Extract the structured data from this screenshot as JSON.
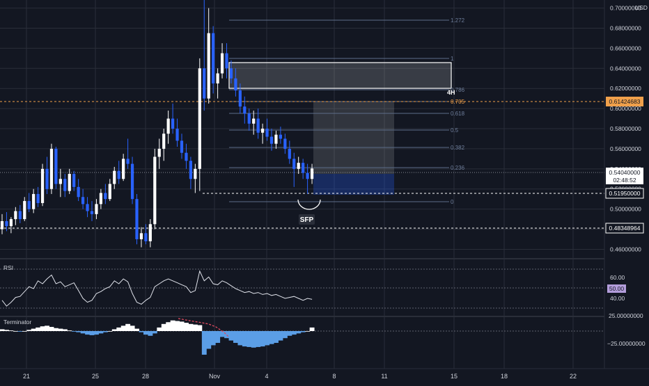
{
  "colors": {
    "background": "#131722",
    "up": "#ffffff",
    "down": "#2962ff",
    "grid": "#2a2e39",
    "axis_text": "#d1d4dc",
    "fib": "#5d6d8a",
    "fib_text": "#6f7f9c",
    "orange": "#f0a04b",
    "rsi": "#e0e3eb",
    "term_blue": "#5b9ee6",
    "term_white": "#ffffff",
    "term_red": "#e04a5f",
    "rsi_badge": "#b39ddb"
  },
  "price_axis": {
    "currency": "USD",
    "ticks": [
      "0.70000000",
      "0.68000000",
      "0.66000000",
      "0.64000000",
      "0.62000000",
      "0.60000000",
      "0.58000000",
      "0.56000000",
      "0.54000000",
      "0.52000000",
      "0.50000000",
      "0.48000000",
      "0.46000000"
    ]
  },
  "price_labels": {
    "top_level": "0.61424683",
    "current": "0.54040000",
    "countdown": "02:48:52",
    "low_level": "0.51950000",
    "bottom_level": "0.48348964"
  },
  "fib_labels": [
    "1.272",
    "1",
    "0.786",
    "0.705",
    "0.618",
    "0.5",
    "0.382",
    "0.236",
    "0"
  ],
  "annotations": {
    "timeframe": "4H",
    "sfp": "SFP"
  },
  "rsi": {
    "title": "RSI",
    "ticks": [
      "60.00",
      "40.00"
    ],
    "badge": "50.00"
  },
  "terminator": {
    "title": "Terminator",
    "ticks": [
      "25.00000000",
      "−25.00000000"
    ]
  },
  "time_axis": {
    "ticks": [
      "21",
      "25",
      "28",
      "Nov",
      "4",
      "8",
      "11",
      "15",
      "18",
      "22"
    ]
  },
  "chart_data": [
    {
      "type": "candlestick",
      "title": "",
      "currency": "USD",
      "ylim": [
        0.452,
        0.708
      ],
      "x_ticks": [
        "21",
        "25",
        "28",
        "Nov",
        "4",
        "8",
        "11",
        "15",
        "18",
        "22"
      ],
      "ohlc": [
        [
          0.48,
          0.495,
          0.475,
          0.488
        ],
        [
          0.488,
          0.497,
          0.478,
          0.483
        ],
        [
          0.483,
          0.492,
          0.476,
          0.49
        ],
        [
          0.49,
          0.502,
          0.484,
          0.498
        ],
        [
          0.498,
          0.504,
          0.486,
          0.49
        ],
        [
          0.49,
          0.512,
          0.488,
          0.508
        ],
        [
          0.508,
          0.516,
          0.497,
          0.5
        ],
        [
          0.5,
          0.52,
          0.496,
          0.515
        ],
        [
          0.515,
          0.522,
          0.502,
          0.506
        ],
        [
          0.506,
          0.545,
          0.503,
          0.54
        ],
        [
          0.54,
          0.552,
          0.515,
          0.52
        ],
        [
          0.52,
          0.565,
          0.515,
          0.56
        ],
        [
          0.56,
          0.562,
          0.52,
          0.525
        ],
        [
          0.525,
          0.54,
          0.512,
          0.53
        ],
        [
          0.53,
          0.535,
          0.512,
          0.518
        ],
        [
          0.518,
          0.54,
          0.515,
          0.535
        ],
        [
          0.535,
          0.538,
          0.518,
          0.522
        ],
        [
          0.522,
          0.53,
          0.508,
          0.512
        ],
        [
          0.512,
          0.52,
          0.5,
          0.505
        ],
        [
          0.505,
          0.512,
          0.492,
          0.498
        ],
        [
          0.498,
          0.508,
          0.488,
          0.495
        ],
        [
          0.495,
          0.51,
          0.49,
          0.505
        ],
        [
          0.505,
          0.52,
          0.5,
          0.516
        ],
        [
          0.516,
          0.525,
          0.505,
          0.51
        ],
        [
          0.51,
          0.53,
          0.508,
          0.525
        ],
        [
          0.525,
          0.542,
          0.52,
          0.538
        ],
        [
          0.538,
          0.548,
          0.525,
          0.53
        ],
        [
          0.53,
          0.555,
          0.528,
          0.55
        ],
        [
          0.55,
          0.57,
          0.54,
          0.545
        ],
        [
          0.545,
          0.552,
          0.505,
          0.51
        ],
        [
          0.51,
          0.515,
          0.465,
          0.47
        ],
        [
          0.47,
          0.482,
          0.462,
          0.476
        ],
        [
          0.476,
          0.485,
          0.465,
          0.468
        ],
        [
          0.468,
          0.49,
          0.462,
          0.485
        ],
        [
          0.485,
          0.56,
          0.48,
          0.552
        ],
        [
          0.552,
          0.57,
          0.54,
          0.56
        ],
        [
          0.56,
          0.58,
          0.548,
          0.575
        ],
        [
          0.575,
          0.598,
          0.565,
          0.59
        ],
        [
          0.59,
          0.605,
          0.575,
          0.58
        ],
        [
          0.58,
          0.59,
          0.562,
          0.568
        ],
        [
          0.568,
          0.575,
          0.55,
          0.556
        ],
        [
          0.556,
          0.565,
          0.54,
          0.548
        ],
        [
          0.548,
          0.552,
          0.52,
          0.53
        ],
        [
          0.53,
          0.545,
          0.516,
          0.54
        ],
        [
          0.54,
          0.65,
          0.518,
          0.64
        ],
        [
          0.64,
          0.715,
          0.598,
          0.61
        ],
        [
          0.61,
          0.7,
          0.605,
          0.675
        ],
        [
          0.675,
          0.682,
          0.615,
          0.625
        ],
        [
          0.625,
          0.64,
          0.61,
          0.635
        ],
        [
          0.635,
          0.665,
          0.63,
          0.655
        ],
        [
          0.655,
          0.665,
          0.63,
          0.64
        ],
        [
          0.64,
          0.648,
          0.625,
          0.63
        ],
        [
          0.63,
          0.64,
          0.612,
          0.618
        ],
        [
          0.618,
          0.625,
          0.595,
          0.602
        ],
        [
          0.602,
          0.612,
          0.585,
          0.595
        ],
        [
          0.595,
          0.6,
          0.578,
          0.585
        ],
        [
          0.585,
          0.598,
          0.574,
          0.59
        ],
        [
          0.59,
          0.6,
          0.57,
          0.576
        ],
        [
          0.576,
          0.585,
          0.565,
          0.58
        ],
        [
          0.58,
          0.59,
          0.568,
          0.572
        ],
        [
          0.572,
          0.58,
          0.558,
          0.565
        ],
        [
          0.565,
          0.578,
          0.56,
          0.574
        ],
        [
          0.574,
          0.582,
          0.565,
          0.57
        ],
        [
          0.57,
          0.575,
          0.555,
          0.56
        ],
        [
          0.56,
          0.568,
          0.545,
          0.55
        ],
        [
          0.55,
          0.556,
          0.522,
          0.54
        ],
        [
          0.54,
          0.552,
          0.535,
          0.546
        ],
        [
          0.546,
          0.55,
          0.53,
          0.536
        ],
        [
          0.536,
          0.545,
          0.515,
          0.53
        ],
        [
          0.53,
          0.545,
          0.525,
          0.5404
        ]
      ]
    },
    {
      "type": "line",
      "title": "RSI",
      "ylim": [
        25,
        80
      ],
      "y_ticks": [
        60,
        40
      ],
      "levels": [
        70,
        50,
        30
      ],
      "values": [
        38,
        32,
        36,
        41,
        42,
        47,
        52,
        50,
        58,
        55,
        60,
        64,
        55,
        57,
        52,
        54,
        56,
        48,
        40,
        36,
        38,
        45,
        47,
        50,
        52,
        58,
        55,
        60,
        57,
        45,
        36,
        34,
        38,
        41,
        52,
        55,
        58,
        60,
        58,
        56,
        54,
        52,
        46,
        48,
        68,
        58,
        62,
        55,
        54,
        58,
        56,
        53,
        50,
        48,
        46,
        47,
        45,
        46,
        44,
        45,
        43,
        44,
        42,
        40,
        41,
        42,
        40,
        38,
        40,
        39
      ]
    },
    {
      "type": "area",
      "title": "Terminator",
      "ylim": [
        -45,
        32
      ],
      "y_ticks": [
        25,
        -25
      ],
      "values": [
        3,
        2,
        1,
        0,
        -1,
        0,
        2,
        4,
        6,
        8,
        9,
        7,
        5,
        4,
        3,
        1,
        -1,
        -2,
        -4,
        -6,
        -7,
        -6,
        -4,
        -2,
        0,
        3,
        6,
        9,
        12,
        9,
        4,
        -2,
        -6,
        -8,
        -4,
        6,
        12,
        15,
        18,
        17,
        16,
        14,
        12,
        11,
        10,
        -40,
        -30,
        -24,
        -20,
        -10,
        -12,
        -16,
        -20,
        -24,
        -26,
        -27,
        -28,
        -27,
        -26,
        -24,
        -22,
        -20,
        -16,
        -12,
        -8,
        -6,
        -4,
        -2,
        0,
        6
      ]
    }
  ]
}
